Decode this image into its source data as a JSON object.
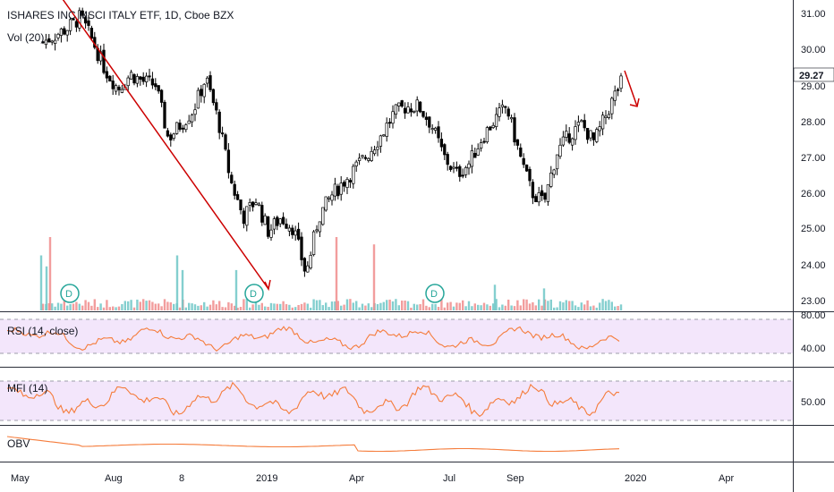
{
  "header": {
    "title": "ISHARES INC MSCI ITALY ETF, 1D, Cboe BZX",
    "volume_label": "Vol (20)"
  },
  "price_axis": {
    "ticks": [
      "31.00",
      "30.00",
      "29.00",
      "28.00",
      "27.00",
      "26.00",
      "25.00",
      "24.00",
      "23.00"
    ],
    "last_price": "29.27"
  },
  "time_axis": {
    "labels": [
      "May",
      "Aug",
      "8",
      "2019",
      "Apr",
      "Jul",
      "Sep",
      "2020",
      "Apr"
    ]
  },
  "rsi": {
    "label": "RSI (14, close)",
    "ticks": [
      "80.00",
      "40.00"
    ],
    "color": "#f57c3b"
  },
  "mfi": {
    "label": "MFI (14)",
    "ticks": [
      "50.00"
    ],
    "color": "#f57c3b"
  },
  "obv": {
    "label": "OBV",
    "color": "#f57c3b"
  },
  "dividend_markers": [
    "D",
    "D",
    "D"
  ],
  "colors": {
    "up": "#ffffff",
    "down": "#000000",
    "volume_up": "#6fc7c7",
    "volume_down": "#f08c8c",
    "trendline": "#cc0000",
    "band_fill": "#f3e6fb",
    "dividend": "#26a69a"
  },
  "chart_data": {
    "type": "candlestick",
    "title": "ISHARES INC MSCI ITALY ETF, 1D, Cboe BZX",
    "ylim": [
      22.6,
      31.4
    ],
    "price_path": [
      [
        0,
        30.2
      ],
      [
        14,
        30.4
      ],
      [
        28,
        30.6
      ],
      [
        42,
        30.9
      ],
      [
        56,
        30.2
      ],
      [
        70,
        29.4
      ],
      [
        84,
        28.9
      ],
      [
        98,
        29.3
      ],
      [
        112,
        29.1
      ],
      [
        126,
        29.0
      ],
      [
        140,
        27.5
      ],
      [
        154,
        27.9
      ],
      [
        168,
        28.3
      ],
      [
        182,
        29.2
      ],
      [
        196,
        28.0
      ],
      [
        210,
        26.3
      ],
      [
        224,
        25.3
      ],
      [
        238,
        25.8
      ],
      [
        252,
        24.9
      ],
      [
        266,
        25.3
      ],
      [
        280,
        25.0
      ],
      [
        294,
        23.7
      ],
      [
        308,
        25.3
      ],
      [
        322,
        25.9
      ],
      [
        336,
        26.3
      ],
      [
        350,
        26.7
      ],
      [
        364,
        27.1
      ],
      [
        378,
        27.6
      ],
      [
        392,
        28.2
      ],
      [
        406,
        28.4
      ],
      [
        420,
        28.4
      ],
      [
        434,
        27.9
      ],
      [
        448,
        27.0
      ],
      [
        462,
        26.5
      ],
      [
        476,
        26.8
      ],
      [
        490,
        27.5
      ],
      [
        504,
        28.0
      ],
      [
        518,
        28.4
      ],
      [
        532,
        27.1
      ],
      [
        546,
        26.0
      ],
      [
        560,
        25.7
      ],
      [
        574,
        27.1
      ],
      [
        588,
        27.6
      ],
      [
        602,
        27.9
      ],
      [
        616,
        27.4
      ],
      [
        630,
        28.2
      ],
      [
        644,
        29.0
      ],
      [
        658,
        29.4
      ],
      [
        672,
        29.0
      ],
      [
        686,
        28.6
      ],
      [
        692,
        29.27
      ]
    ],
    "volume_spikes": [
      {
        "x": 38,
        "v": 0.75
      },
      {
        "x": 44,
        "v": 0.6
      },
      {
        "x": 48,
        "v": 1.0
      },
      {
        "x": 190,
        "v": 0.75
      },
      {
        "x": 196,
        "v": 0.55
      },
      {
        "x": 256,
        "v": 0.55
      },
      {
        "x": 368,
        "v": 1.0
      },
      {
        "x": 410,
        "v": 0.9
      },
      {
        "x": 545,
        "v": 0.35
      },
      {
        "x": 600,
        "v": 0.3
      }
    ],
    "trendline": [
      [
        62,
        31.4
      ],
      [
        292,
        23.3
      ]
    ],
    "forecast_arrow": [
      [
        690,
        29.4
      ],
      [
        704,
        28.4
      ]
    ],
    "dividend_x": [
      76,
      284,
      486
    ]
  }
}
